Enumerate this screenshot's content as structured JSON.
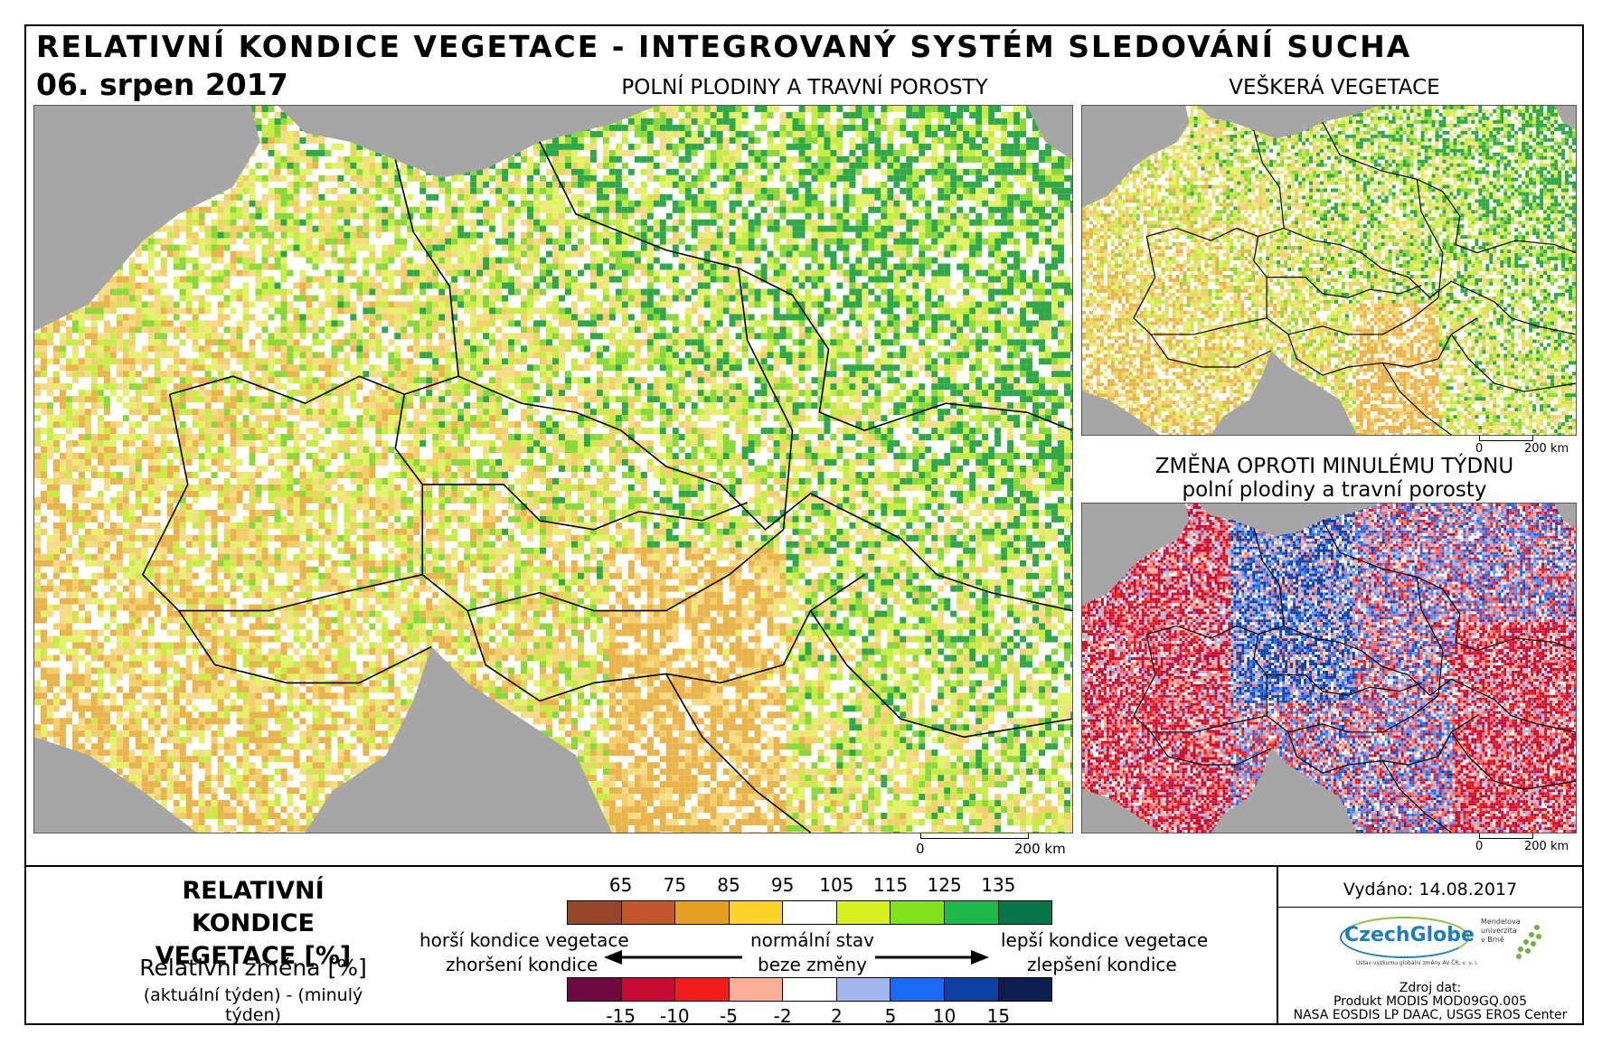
{
  "header": {
    "title": "RELATIVNÍ KONDICE VEGETACE - INTEGROVANÝ SYSTÉM SLEDOVÁNÍ SUCHA",
    "date": "06. srpen 2017"
  },
  "maps": {
    "main": {
      "title": "POLNÍ PLODINY A TRAVNÍ POROSTY",
      "scale_zero": "0",
      "scale_end": "200 km"
    },
    "all_vegetation": {
      "title": "VEŠKERÁ VEGETACE",
      "scale_zero": "0",
      "scale_end": "200 km"
    },
    "weekly_change": {
      "title_line1": "ZMĚNA OPROTI MINULÉMU TÝDNU",
      "title_line2": "polní plodiny a travní porosty",
      "scale_zero": "0",
      "scale_end": "200 km"
    }
  },
  "legend": {
    "title": "RELATIVNÍ KONDICE VEGETACE [%]",
    "change_title": "Relativní změna [%]",
    "change_subtitle": "(aktuální týden) - (minulý týden)",
    "condition_ticks": [
      "65",
      "75",
      "85",
      "95",
      "105",
      "115",
      "125",
      "135"
    ],
    "condition_colors": [
      "#97462a",
      "#c2582a",
      "#e3a021",
      "#fcd228",
      "#ffffff",
      "#d9f21f",
      "#7fe21c",
      "#1eba4b",
      "#07764a"
    ],
    "change_ticks": [
      "-15",
      "-10",
      "-5",
      "-2",
      "2",
      "5",
      "10",
      "15"
    ],
    "change_colors": [
      "#6d0840",
      "#c60b33",
      "#f21c1c",
      "#fcad96",
      "#ffffff",
      "#a3b6ee",
      "#1b6af4",
      "#0c3f9f",
      "#0d1d50"
    ],
    "worse_condition": "horší kondice vegetace",
    "normal_state": "normální stav",
    "better_condition": "lepší kondice vegetace",
    "deterioration": "zhoršení kondice",
    "no_change": "beze změny",
    "improvement": "zlepšení kondice"
  },
  "footer": {
    "issued": "Vydáno: 14.08.2017",
    "logo_czechglobe": "CzechGlobe",
    "logo_czechglobe_sub": "Ústav výzkumu globální změny AV ČR, v. v. i.",
    "logo_mendel": "Mendelova univerzita v Brně",
    "source_label": "Zdroj dat:",
    "source_product": "Produkt MODIS MOD09GQ.005",
    "source_provider": "NASA EOSDIS LP DAAC, USGS EROS Center"
  },
  "colors": {
    "sea": "#a6a6a6",
    "border": "#000000"
  }
}
